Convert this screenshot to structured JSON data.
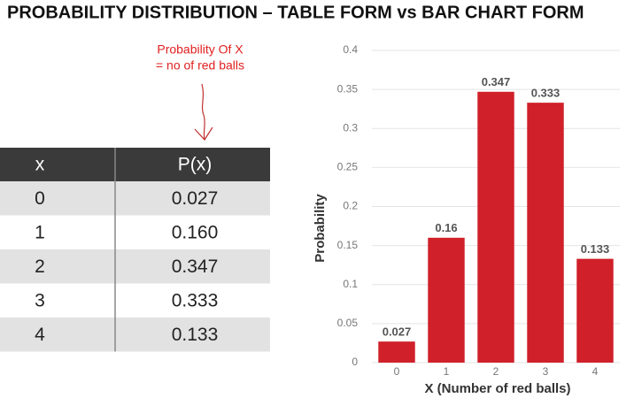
{
  "title": "PROBABILITY DISTRIBUTION  – TABLE FORM vs BAR CHART FORM",
  "annotation": [
    "Probability Of X",
    "= no of red balls"
  ],
  "table": {
    "header": [
      "x",
      "P(x)"
    ],
    "rows": [
      [
        "0",
        "0.027"
      ],
      [
        "1",
        "0.160"
      ],
      [
        "2",
        "0.347"
      ],
      [
        "3",
        "0.333"
      ],
      [
        "4",
        "0.133"
      ]
    ]
  },
  "chart_data": {
    "type": "bar",
    "xlabel": "X (Number of red balls)",
    "ylabel": "Probability",
    "categories": [
      "0",
      "1",
      "2",
      "3",
      "4"
    ],
    "values": [
      0.027,
      0.16,
      0.347,
      0.333,
      0.133
    ],
    "color": "#d0202a",
    "ylim": [
      0,
      0.4
    ],
    "yticks": [
      0,
      0.05,
      0.1,
      0.15,
      0.2,
      0.25,
      0.3,
      0.35,
      0.4
    ],
    "grid": true
  }
}
